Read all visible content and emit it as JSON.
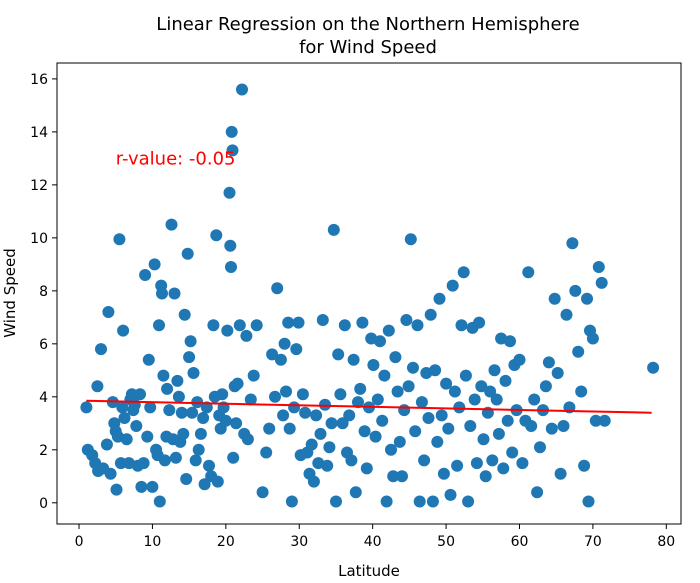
{
  "chart_data": {
    "type": "scatter",
    "title": [
      "Linear Regression on the Northern Hemisphere",
      "for Wind Speed"
    ],
    "xlabel": "Latitude",
    "ylabel": "Wind Speed",
    "xlim": [
      -3,
      82
    ],
    "ylim": [
      -0.8,
      16.6
    ],
    "xticks": [
      0,
      10,
      20,
      30,
      40,
      50,
      60,
      70,
      80
    ],
    "yticks": [
      0,
      2,
      4,
      6,
      8,
      10,
      12,
      14,
      16
    ],
    "grid": false,
    "colors": {
      "points": "#1f77b4",
      "line": "#ff0000",
      "annotation": "#ff0000"
    },
    "annotation": {
      "text": "r-value: -0.05",
      "x": 5,
      "y": 13
    },
    "regression": {
      "x": [
        1,
        78
      ],
      "y": [
        3.85,
        3.4
      ]
    },
    "points": [
      [
        1.0,
        3.6
      ],
      [
        1.2,
        2.0
      ],
      [
        1.8,
        1.8
      ],
      [
        2.2,
        1.5
      ],
      [
        2.5,
        4.4
      ],
      [
        2.6,
        1.2
      ],
      [
        3.0,
        5.8
      ],
      [
        3.3,
        1.3
      ],
      [
        3.8,
        2.2
      ],
      [
        4.0,
        7.2
      ],
      [
        4.3,
        1.1
      ],
      [
        4.6,
        3.8
      ],
      [
        4.8,
        3.0
      ],
      [
        5.0,
        2.7
      ],
      [
        5.1,
        0.5
      ],
      [
        5.3,
        2.5
      ],
      [
        5.5,
        9.95
      ],
      [
        5.7,
        1.5
      ],
      [
        5.9,
        3.6
      ],
      [
        6.0,
        6.5
      ],
      [
        6.2,
        3.2
      ],
      [
        6.5,
        2.4
      ],
      [
        6.8,
        1.5
      ],
      [
        7.0,
        3.9
      ],
      [
        7.2,
        4.1
      ],
      [
        7.4,
        3.5
      ],
      [
        7.6,
        3.7
      ],
      [
        7.8,
        2.9
      ],
      [
        8.0,
        1.4
      ],
      [
        8.3,
        4.1
      ],
      [
        8.5,
        0.6
      ],
      [
        8.8,
        1.5
      ],
      [
        9.0,
        8.6
      ],
      [
        9.3,
        2.5
      ],
      [
        9.5,
        5.4
      ],
      [
        9.7,
        3.6
      ],
      [
        10.0,
        0.6
      ],
      [
        10.3,
        9.0
      ],
      [
        10.5,
        2.0
      ],
      [
        10.7,
        1.8
      ],
      [
        10.9,
        6.7
      ],
      [
        11.0,
        0.05
      ],
      [
        11.2,
        8.2
      ],
      [
        11.3,
        7.9
      ],
      [
        11.5,
        4.8
      ],
      [
        11.7,
        1.6
      ],
      [
        11.9,
        2.5
      ],
      [
        12.0,
        4.3
      ],
      [
        12.3,
        3.5
      ],
      [
        12.6,
        10.5
      ],
      [
        12.8,
        2.4
      ],
      [
        13.0,
        7.9
      ],
      [
        13.2,
        1.7
      ],
      [
        13.4,
        4.6
      ],
      [
        13.6,
        4.0
      ],
      [
        13.8,
        2.3
      ],
      [
        14.0,
        3.4
      ],
      [
        14.2,
        2.6
      ],
      [
        14.4,
        7.1
      ],
      [
        14.6,
        0.9
      ],
      [
        14.8,
        9.4
      ],
      [
        15.0,
        5.5
      ],
      [
        15.2,
        6.1
      ],
      [
        15.4,
        3.4
      ],
      [
        15.6,
        4.9
      ],
      [
        15.9,
        1.6
      ],
      [
        16.1,
        3.8
      ],
      [
        16.3,
        2.0
      ],
      [
        16.6,
        2.6
      ],
      [
        16.9,
        3.2
      ],
      [
        17.1,
        0.7
      ],
      [
        17.4,
        3.6
      ],
      [
        17.7,
        1.4
      ],
      [
        18.0,
        1.0
      ],
      [
        18.3,
        6.7
      ],
      [
        18.5,
        4.0
      ],
      [
        18.7,
        10.1
      ],
      [
        18.9,
        0.8
      ],
      [
        19.1,
        3.3
      ],
      [
        19.3,
        2.8
      ],
      [
        19.5,
        4.1
      ],
      [
        19.7,
        3.6
      ],
      [
        20.0,
        3.1
      ],
      [
        20.2,
        6.5
      ],
      [
        20.5,
        11.7
      ],
      [
        20.6,
        9.7
      ],
      [
        20.7,
        8.9
      ],
      [
        20.8,
        14.0
      ],
      [
        20.9,
        13.3
      ],
      [
        21.0,
        1.7
      ],
      [
        21.2,
        4.4
      ],
      [
        21.4,
        3.0
      ],
      [
        21.6,
        4.5
      ],
      [
        21.9,
        6.7
      ],
      [
        22.2,
        15.6
      ],
      [
        22.5,
        2.6
      ],
      [
        22.8,
        6.3
      ],
      [
        23.0,
        2.4
      ],
      [
        23.4,
        3.9
      ],
      [
        23.8,
        4.8
      ],
      [
        24.2,
        6.7
      ],
      [
        25.0,
        0.4
      ],
      [
        25.5,
        1.9
      ],
      [
        25.9,
        2.8
      ],
      [
        26.3,
        5.6
      ],
      [
        26.7,
        4.0
      ],
      [
        27.0,
        8.1
      ],
      [
        27.5,
        5.4
      ],
      [
        27.8,
        3.3
      ],
      [
        28.0,
        6.0
      ],
      [
        28.2,
        4.2
      ],
      [
        28.5,
        6.8
      ],
      [
        28.7,
        2.8
      ],
      [
        29.0,
        0.05
      ],
      [
        29.3,
        3.6
      ],
      [
        29.6,
        5.8
      ],
      [
        29.9,
        6.8
      ],
      [
        30.2,
        1.8
      ],
      [
        30.5,
        4.1
      ],
      [
        30.8,
        3.4
      ],
      [
        31.1,
        1.9
      ],
      [
        31.4,
        1.1
      ],
      [
        31.7,
        2.2
      ],
      [
        32.0,
        0.8
      ],
      [
        32.3,
        3.3
      ],
      [
        32.6,
        1.5
      ],
      [
        32.9,
        2.6
      ],
      [
        33.2,
        6.9
      ],
      [
        33.5,
        3.7
      ],
      [
        33.8,
        1.4
      ],
      [
        34.1,
        2.1
      ],
      [
        34.4,
        3.0
      ],
      [
        34.7,
        10.3
      ],
      [
        35.0,
        0.05
      ],
      [
        35.3,
        5.6
      ],
      [
        35.6,
        4.1
      ],
      [
        35.9,
        3.0
      ],
      [
        36.2,
        6.7
      ],
      [
        36.5,
        1.9
      ],
      [
        36.8,
        3.3
      ],
      [
        37.1,
        1.6
      ],
      [
        37.4,
        5.4
      ],
      [
        37.7,
        0.4
      ],
      [
        38.0,
        3.8
      ],
      [
        38.3,
        4.3
      ],
      [
        38.6,
        6.8
      ],
      [
        38.9,
        2.7
      ],
      [
        39.2,
        1.3
      ],
      [
        39.5,
        3.6
      ],
      [
        39.8,
        6.2
      ],
      [
        40.1,
        5.2
      ],
      [
        40.4,
        2.5
      ],
      [
        40.7,
        3.9
      ],
      [
        41.0,
        6.1
      ],
      [
        41.3,
        3.1
      ],
      [
        41.6,
        4.8
      ],
      [
        41.9,
        0.05
      ],
      [
        42.2,
        6.5
      ],
      [
        42.5,
        2.0
      ],
      [
        42.8,
        1.0
      ],
      [
        43.1,
        5.5
      ],
      [
        43.4,
        4.2
      ],
      [
        43.7,
        2.3
      ],
      [
        44.0,
        1.0
      ],
      [
        44.3,
        3.5
      ],
      [
        44.6,
        6.9
      ],
      [
        44.9,
        4.4
      ],
      [
        45.2,
        9.95
      ],
      [
        45.5,
        5.1
      ],
      [
        45.8,
        2.7
      ],
      [
        46.1,
        6.7
      ],
      [
        46.4,
        0.05
      ],
      [
        46.7,
        3.8
      ],
      [
        47.0,
        1.6
      ],
      [
        47.3,
        4.9
      ],
      [
        47.6,
        3.2
      ],
      [
        47.9,
        7.1
      ],
      [
        48.2,
        0.05
      ],
      [
        48.5,
        5.0
      ],
      [
        48.8,
        2.3
      ],
      [
        49.1,
        7.7
      ],
      [
        49.4,
        3.3
      ],
      [
        49.7,
        1.1
      ],
      [
        50.0,
        4.5
      ],
      [
        50.3,
        2.8
      ],
      [
        50.6,
        0.3
      ],
      [
        50.9,
        8.2
      ],
      [
        51.2,
        4.2
      ],
      [
        51.5,
        1.4
      ],
      [
        51.8,
        3.6
      ],
      [
        52.1,
        6.7
      ],
      [
        52.4,
        8.7
      ],
      [
        52.7,
        4.8
      ],
      [
        53.0,
        0.05
      ],
      [
        53.3,
        2.9
      ],
      [
        53.6,
        6.6
      ],
      [
        53.9,
        3.9
      ],
      [
        54.2,
        1.5
      ],
      [
        54.5,
        6.8
      ],
      [
        54.8,
        4.4
      ],
      [
        55.1,
        2.4
      ],
      [
        55.4,
        1.0
      ],
      [
        55.7,
        3.4
      ],
      [
        56.0,
        4.2
      ],
      [
        56.3,
        1.6
      ],
      [
        56.6,
        5.0
      ],
      [
        56.9,
        3.9
      ],
      [
        57.2,
        2.6
      ],
      [
        57.5,
        6.2
      ],
      [
        57.8,
        1.3
      ],
      [
        58.1,
        4.6
      ],
      [
        58.4,
        3.1
      ],
      [
        58.7,
        6.1
      ],
      [
        59.0,
        1.9
      ],
      [
        59.3,
        5.2
      ],
      [
        59.6,
        3.5
      ],
      [
        60.0,
        5.4
      ],
      [
        60.4,
        1.5
      ],
      [
        60.8,
        3.1
      ],
      [
        61.2,
        8.7
      ],
      [
        61.6,
        2.9
      ],
      [
        62.0,
        3.9
      ],
      [
        62.4,
        0.4
      ],
      [
        62.8,
        2.1
      ],
      [
        63.2,
        3.5
      ],
      [
        63.6,
        4.4
      ],
      [
        64.0,
        5.3
      ],
      [
        64.4,
        2.8
      ],
      [
        64.8,
        7.7
      ],
      [
        65.2,
        4.9
      ],
      [
        65.6,
        1.1
      ],
      [
        66.0,
        2.9
      ],
      [
        66.4,
        7.1
      ],
      [
        66.8,
        3.6
      ],
      [
        67.2,
        9.8
      ],
      [
        67.6,
        8.0
      ],
      [
        68.0,
        5.7
      ],
      [
        68.4,
        4.2
      ],
      [
        68.8,
        1.4
      ],
      [
        69.2,
        7.7
      ],
      [
        69.4,
        0.05
      ],
      [
        69.6,
        6.5
      ],
      [
        70.0,
        6.2
      ],
      [
        70.4,
        3.1
      ],
      [
        70.8,
        8.9
      ],
      [
        71.2,
        8.3
      ],
      [
        71.6,
        3.1
      ],
      [
        78.2,
        5.1
      ]
    ]
  }
}
